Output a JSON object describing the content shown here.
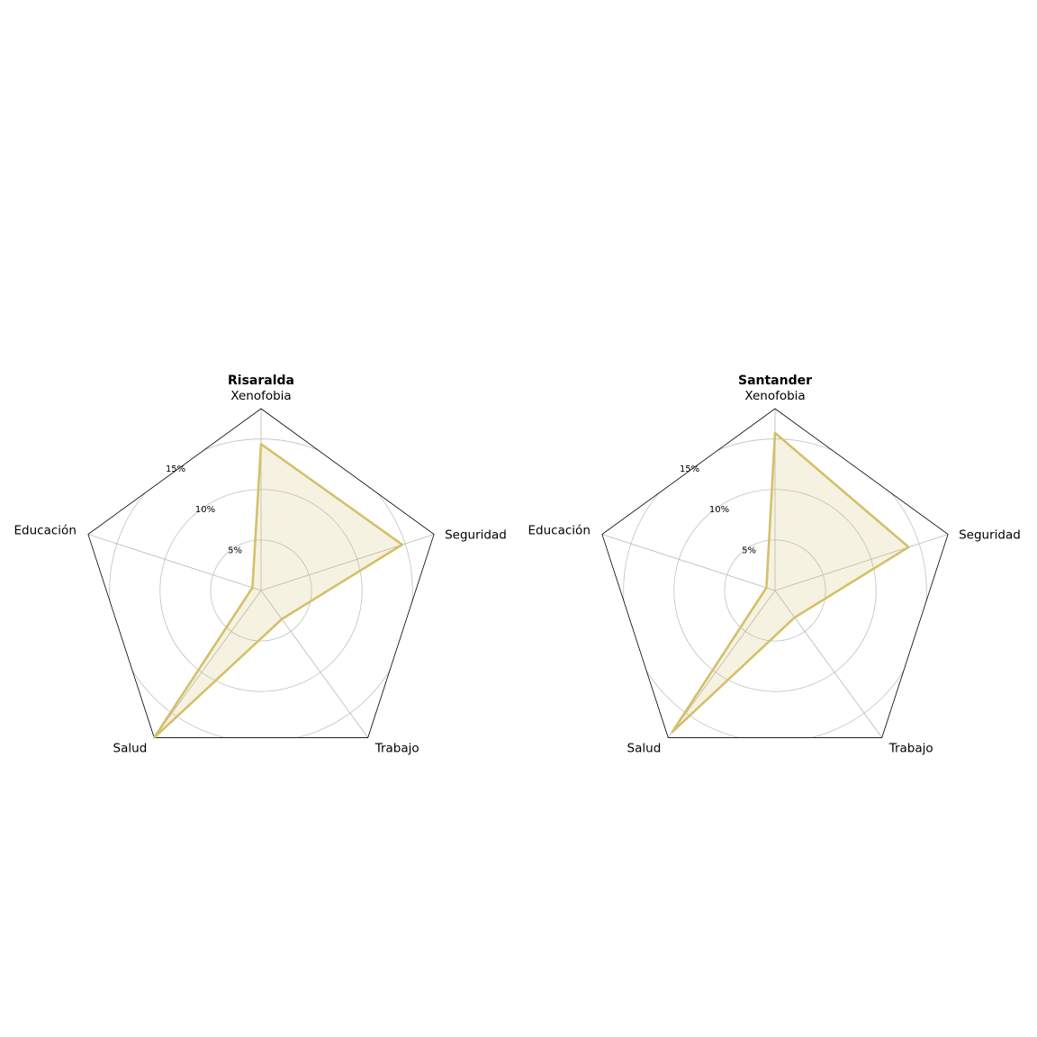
{
  "colors": {
    "series": "#d4c06a",
    "grid": "#c0c0c0",
    "frame": "#000000"
  },
  "chart_data": [
    {
      "type": "radar",
      "title": "Risaralda",
      "axes": [
        "Xenofobia",
        "Seguridad",
        "Trabajo",
        "Salud",
        "Educación"
      ],
      "rlim": [
        0,
        18
      ],
      "ticks": [
        5,
        10,
        15
      ],
      "tick_labels": [
        "5%",
        "10%",
        "15%"
      ],
      "values": [
        14.5,
        14.7,
        3.5,
        18,
        0.9
      ],
      "grid": true,
      "legend": "none"
    },
    {
      "type": "radar",
      "title": "Santander",
      "axes": [
        "Xenofobia",
        "Seguridad",
        "Trabajo",
        "Salud",
        "Educación"
      ],
      "rlim": [
        0,
        18
      ],
      "ticks": [
        5,
        10,
        15
      ],
      "tick_labels": [
        "5%",
        "10%",
        "15%"
      ],
      "values": [
        15.6,
        13.9,
        3.3,
        17.3,
        0.9
      ],
      "grid": true,
      "legend": "none"
    }
  ]
}
